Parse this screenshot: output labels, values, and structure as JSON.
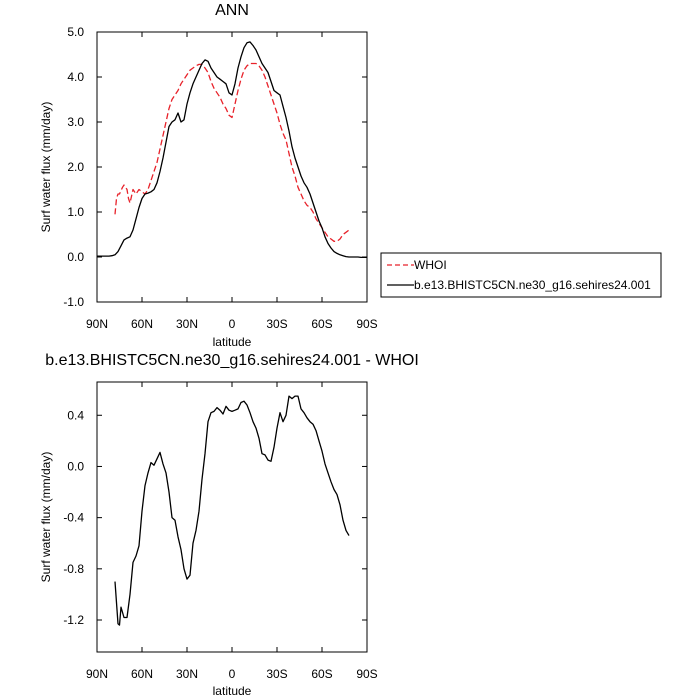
{
  "chart_data": [
    {
      "type": "line",
      "title": "ANN",
      "xlabel": "latitude",
      "ylabel": "Surf water flux (mm/day)",
      "xlim": [
        90,
        -90
      ],
      "ylim": [
        -1.0,
        5.0
      ],
      "x_tick_values": [
        90,
        60,
        30,
        0,
        -30,
        -60,
        -90
      ],
      "x_tick_labels": [
        "90N",
        "60N",
        "30N",
        "0",
        "30S",
        "60S",
        "90S"
      ],
      "y_tick_values": [
        -1,
        0,
        1,
        2,
        3,
        4,
        5
      ],
      "y_tick_labels": [
        "-1.0",
        "0.0",
        "1.0",
        "2.0",
        "3.0",
        "4.0",
        "5.0"
      ],
      "legend_position": "right",
      "series": [
        {
          "name": "WHOI",
          "color": "#e8222a",
          "dash": "dashed",
          "x": [
            78,
            77,
            76,
            75,
            73,
            72,
            70,
            69,
            68,
            67,
            66,
            64,
            62,
            60,
            58,
            56,
            54,
            52,
            50,
            48,
            46,
            44,
            42,
            40,
            38,
            36,
            34,
            32,
            30,
            28,
            26,
            24,
            22,
            20,
            18,
            16,
            14,
            12,
            10,
            8,
            6,
            4,
            2,
            0,
            -2,
            -4,
            -6,
            -8,
            -10,
            -12,
            -14,
            -16,
            -18,
            -20,
            -22,
            -24,
            -26,
            -28,
            -30,
            -32,
            -34,
            -36,
            -38,
            -40,
            -42,
            -44,
            -46,
            -48,
            -50,
            -52,
            -54,
            -56,
            -58,
            -60,
            -62,
            -64,
            -66,
            -68,
            -70,
            -72,
            -74,
            -76,
            -78
          ],
          "y": [
            0.95,
            1.3,
            1.4,
            1.4,
            1.55,
            1.6,
            1.5,
            1.3,
            1.2,
            1.35,
            1.5,
            1.4,
            1.5,
            1.45,
            1.4,
            1.5,
            1.7,
            1.9,
            2.1,
            2.4,
            2.7,
            3.0,
            3.3,
            3.5,
            3.6,
            3.7,
            3.85,
            3.95,
            4.05,
            4.15,
            4.2,
            4.25,
            4.28,
            4.28,
            4.2,
            4.1,
            3.9,
            3.75,
            3.65,
            3.55,
            3.4,
            3.3,
            3.15,
            3.1,
            3.4,
            3.7,
            3.95,
            4.15,
            4.25,
            4.3,
            4.3,
            4.3,
            4.25,
            4.15,
            4.0,
            3.8,
            3.6,
            3.4,
            3.2,
            2.95,
            2.75,
            2.6,
            2.3,
            2.0,
            1.8,
            1.55,
            1.4,
            1.25,
            1.15,
            1.1,
            1.0,
            0.85,
            0.75,
            0.65,
            0.55,
            0.45,
            0.4,
            0.35,
            0.35,
            0.4,
            0.5,
            0.55,
            0.6
          ]
        },
        {
          "name": "b.e13.BHISTC5CN.ne30_g16.sehires24.001",
          "color": "#000000",
          "dash": "solid",
          "x": [
            90,
            88,
            86,
            84,
            82,
            80,
            78,
            76,
            74,
            72,
            70,
            68,
            66,
            64,
            62,
            60,
            58,
            56,
            54,
            52,
            50,
            48,
            46,
            44,
            42,
            40,
            38,
            36,
            34,
            32,
            30,
            28,
            26,
            24,
            22,
            20,
            18,
            16,
            14,
            12,
            10,
            8,
            6,
            4,
            2,
            0,
            -2,
            -4,
            -6,
            -8,
            -10,
            -12,
            -14,
            -16,
            -18,
            -20,
            -22,
            -24,
            -26,
            -28,
            -30,
            -32,
            -34,
            -36,
            -38,
            -40,
            -42,
            -44,
            -46,
            -48,
            -50,
            -52,
            -54,
            -56,
            -58,
            -60,
            -62,
            -64,
            -66,
            -68,
            -70,
            -72,
            -74,
            -76,
            -78,
            -80,
            -82,
            -84,
            -86,
            -88,
            -90
          ],
          "y": [
            0.02,
            0.02,
            0.02,
            0.02,
            0.02,
            0.03,
            0.05,
            0.12,
            0.25,
            0.38,
            0.42,
            0.45,
            0.6,
            0.85,
            1.1,
            1.3,
            1.4,
            1.42,
            1.45,
            1.5,
            1.65,
            1.9,
            2.2,
            2.55,
            2.9,
            3.0,
            3.05,
            3.2,
            3.0,
            3.05,
            3.4,
            3.65,
            3.85,
            4.0,
            4.15,
            4.3,
            4.38,
            4.35,
            4.2,
            4.1,
            4.0,
            3.95,
            3.9,
            3.85,
            3.65,
            3.6,
            3.85,
            4.2,
            4.45,
            4.65,
            4.76,
            4.78,
            4.7,
            4.6,
            4.45,
            4.3,
            4.2,
            4.1,
            3.9,
            3.7,
            3.65,
            3.6,
            3.35,
            3.1,
            2.8,
            2.45,
            2.2,
            2.0,
            1.8,
            1.65,
            1.55,
            1.4,
            1.2,
            1.0,
            0.8,
            0.65,
            0.45,
            0.3,
            0.2,
            0.12,
            0.08,
            0.05,
            0.03,
            0.01,
            0.0,
            0.0,
            0.0,
            0.0,
            -0.01,
            -0.01,
            -0.01
          ]
        }
      ]
    },
    {
      "type": "line",
      "title": "b.e13.BHISTC5CN.ne30_g16.sehires24.001 - WHOI",
      "xlabel": "latitude",
      "ylabel": "Surf water flux (mm/day)",
      "xlim": [
        90,
        -90
      ],
      "ylim": [
        -1.45,
        0.66
      ],
      "x_tick_values": [
        90,
        60,
        30,
        0,
        -30,
        -60,
        -90
      ],
      "x_tick_labels": [
        "90N",
        "60N",
        "30N",
        "0",
        "30S",
        "60S",
        "90S"
      ],
      "y_tick_values": [
        -1.2,
        -0.8,
        -0.4,
        0.0,
        0.4
      ],
      "y_tick_labels": [
        "-1.2",
        "-0.8",
        "-0.4",
        "0.0",
        "0.4"
      ],
      "series": [
        {
          "color": "#000000",
          "dash": "solid",
          "x": [
            78,
            76,
            75,
            74,
            72,
            70,
            68,
            66,
            64,
            62,
            60,
            58,
            56,
            54,
            52,
            50,
            48,
            46,
            44,
            42,
            40,
            38,
            36,
            34,
            32,
            30,
            28,
            26,
            24,
            22,
            20,
            18,
            16,
            14,
            12,
            10,
            8,
            6,
            4,
            2,
            0,
            -2,
            -4,
            -6,
            -8,
            -10,
            -12,
            -14,
            -16,
            -18,
            -20,
            -22,
            -24,
            -26,
            -28,
            -30,
            -32,
            -34,
            -36,
            -38,
            -40,
            -42,
            -44,
            -46,
            -48,
            -50,
            -52,
            -54,
            -56,
            -58,
            -60,
            -62,
            -64,
            -66,
            -68,
            -70,
            -72,
            -74,
            -76,
            -78
          ],
          "y": [
            -0.9,
            -1.23,
            -1.24,
            -1.1,
            -1.18,
            -1.18,
            -1.0,
            -0.75,
            -0.7,
            -0.62,
            -0.35,
            -0.15,
            -0.05,
            0.03,
            0.01,
            0.06,
            0.11,
            0.02,
            -0.05,
            -0.2,
            -0.4,
            -0.42,
            -0.55,
            -0.65,
            -0.8,
            -0.88,
            -0.85,
            -0.6,
            -0.5,
            -0.35,
            -0.1,
            0.1,
            0.35,
            0.42,
            0.43,
            0.46,
            0.44,
            0.41,
            0.47,
            0.44,
            0.43,
            0.44,
            0.45,
            0.5,
            0.51,
            0.48,
            0.42,
            0.35,
            0.3,
            0.22,
            0.1,
            0.09,
            0.05,
            0.04,
            0.15,
            0.3,
            0.42,
            0.35,
            0.4,
            0.55,
            0.53,
            0.55,
            0.55,
            0.45,
            0.42,
            0.38,
            0.35,
            0.33,
            0.28,
            0.2,
            0.12,
            0.02,
            -0.05,
            -0.12,
            -0.18,
            -0.22,
            -0.3,
            -0.42,
            -0.5,
            -0.54
          ]
        }
      ]
    }
  ]
}
